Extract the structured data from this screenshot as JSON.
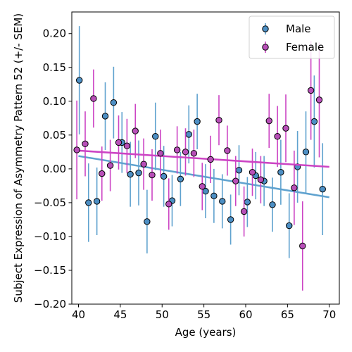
{
  "chart_data": {
    "type": "scatter",
    "xlabel": "Age (years)",
    "ylabel": "Subject Expression of Asymmetry Pattern 52 (+/- SEM)",
    "xlim": [
      39.2,
      71.2
    ],
    "ylim": [
      -0.2,
      0.232
    ],
    "xticks": [
      40,
      45,
      50,
      55,
      60,
      65,
      70
    ],
    "yticks": [
      -0.2,
      -0.15,
      -0.1,
      -0.05,
      0.0,
      0.05,
      0.1,
      0.15,
      0.2
    ],
    "ytick_labels": [
      "−0.20",
      "−0.15",
      "−0.10",
      "−0.05",
      "0.00",
      "0.05",
      "0.10",
      "0.15",
      "0.20"
    ],
    "grid": false,
    "legend_position": "top-right",
    "series": [
      {
        "name": "Male",
        "color": "#5fa2cf",
        "marker_fill": "#4d8fc4",
        "points": [
          {
            "x": 40.1,
            "y": 0.131,
            "err": 0.08
          },
          {
            "x": 41.2,
            "y": -0.05,
            "err": 0.058
          },
          {
            "x": 42.2,
            "y": -0.048,
            "err": 0.05
          },
          {
            "x": 43.2,
            "y": 0.078,
            "err": 0.05
          },
          {
            "x": 44.2,
            "y": 0.098,
            "err": 0.053
          },
          {
            "x": 45.2,
            "y": 0.039,
            "err": 0.045
          },
          {
            "x": 46.2,
            "y": -0.008,
            "err": 0.048
          },
          {
            "x": 47.2,
            "y": -0.006,
            "err": 0.048
          },
          {
            "x": 48.2,
            "y": -0.078,
            "err": 0.047
          },
          {
            "x": 49.2,
            "y": 0.048,
            "err": 0.05
          },
          {
            "x": 50.2,
            "y": -0.011,
            "err": 0.045
          },
          {
            "x": 51.2,
            "y": -0.047,
            "err": 0.038
          },
          {
            "x": 52.2,
            "y": -0.015,
            "err": 0.04
          },
          {
            "x": 53.2,
            "y": 0.051,
            "err": 0.043
          },
          {
            "x": 54.2,
            "y": 0.07,
            "err": 0.041
          },
          {
            "x": 55.2,
            "y": -0.033,
            "err": 0.04
          },
          {
            "x": 56.2,
            "y": -0.04,
            "err": 0.04
          },
          {
            "x": 57.2,
            "y": -0.048,
            "err": 0.04
          },
          {
            "x": 58.2,
            "y": -0.075,
            "err": 0.037
          },
          {
            "x": 59.2,
            "y": -0.002,
            "err": 0.037
          },
          {
            "x": 60.2,
            "y": -0.049,
            "err": 0.037
          },
          {
            "x": 61.2,
            "y": -0.01,
            "err": 0.035
          },
          {
            "x": 62.2,
            "y": -0.018,
            "err": 0.037
          },
          {
            "x": 63.2,
            "y": -0.053,
            "err": 0.04
          },
          {
            "x": 64.2,
            "y": -0.005,
            "err": 0.048
          },
          {
            "x": 65.2,
            "y": -0.084,
            "err": 0.048
          },
          {
            "x": 66.2,
            "y": 0.003,
            "err": 0.053
          },
          {
            "x": 67.2,
            "y": 0.025,
            "err": 0.06
          },
          {
            "x": 68.2,
            "y": 0.07,
            "err": 0.068
          },
          {
            "x": 69.2,
            "y": -0.03,
            "err": 0.068
          }
        ],
        "trend": {
          "x": [
            40,
            70
          ],
          "y": [
            0.019,
            -0.042
          ]
        }
      },
      {
        "name": "Female",
        "color": "#cc44c4",
        "marker_fill": "#b84fb8",
        "points": [
          {
            "x": 39.8,
            "y": 0.028,
            "err": 0.073
          },
          {
            "x": 40.8,
            "y": 0.037,
            "err": 0.048
          },
          {
            "x": 41.8,
            "y": 0.104,
            "err": 0.043
          },
          {
            "x": 42.8,
            "y": -0.007,
            "err": 0.04
          },
          {
            "x": 43.8,
            "y": 0.005,
            "err": 0.038
          },
          {
            "x": 44.8,
            "y": 0.039,
            "err": 0.04
          },
          {
            "x": 45.8,
            "y": 0.034,
            "err": 0.04
          },
          {
            "x": 46.8,
            "y": 0.056,
            "err": 0.04
          },
          {
            "x": 47.8,
            "y": 0.007,
            "err": 0.038
          },
          {
            "x": 48.8,
            "y": -0.009,
            "err": 0.038
          },
          {
            "x": 49.8,
            "y": 0.023,
            "err": 0.035
          },
          {
            "x": 50.8,
            "y": -0.052,
            "err": 0.038
          },
          {
            "x": 51.8,
            "y": 0.028,
            "err": 0.035
          },
          {
            "x": 52.8,
            "y": 0.025,
            "err": 0.035
          },
          {
            "x": 53.8,
            "y": 0.023,
            "err": 0.035
          },
          {
            "x": 54.8,
            "y": -0.026,
            "err": 0.035
          },
          {
            "x": 55.8,
            "y": 0.014,
            "err": 0.035
          },
          {
            "x": 56.8,
            "y": 0.072,
            "err": 0.037
          },
          {
            "x": 57.8,
            "y": 0.027,
            "err": 0.037
          },
          {
            "x": 58.8,
            "y": -0.018,
            "err": 0.037
          },
          {
            "x": 59.8,
            "y": -0.063,
            "err": 0.037
          },
          {
            "x": 60.8,
            "y": -0.005,
            "err": 0.035
          },
          {
            "x": 61.8,
            "y": -0.016,
            "err": 0.035
          },
          {
            "x": 62.8,
            "y": 0.071,
            "err": 0.04
          },
          {
            "x": 63.8,
            "y": 0.048,
            "err": 0.045
          },
          {
            "x": 64.8,
            "y": 0.06,
            "err": 0.05
          },
          {
            "x": 65.8,
            "y": -0.028,
            "err": 0.055
          },
          {
            "x": 66.8,
            "y": -0.114,
            "err": 0.066
          },
          {
            "x": 67.8,
            "y": 0.116,
            "err": 0.073
          },
          {
            "x": 68.8,
            "y": 0.102,
            "err": 0.085
          }
        ],
        "trend": {
          "x": [
            40,
            70
          ],
          "y": [
            0.027,
            0.003
          ]
        }
      }
    ]
  }
}
